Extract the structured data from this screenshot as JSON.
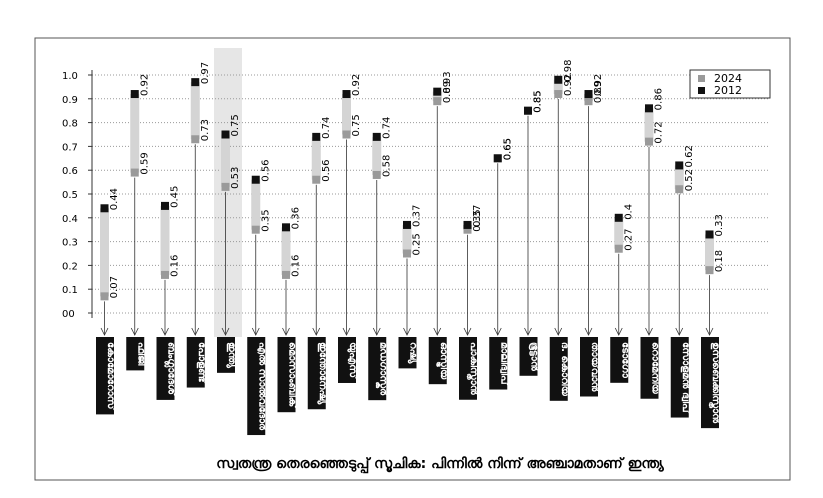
{
  "chart_data": {
    "type": "range",
    "title": "സ്വതന്ത്ര തെരഞ്ഞെടുപ്പ് സൂചിക: പിന്നിൽ നിന്ന് അഞ്ചാമതാണ് ഇന്ത്യ",
    "categories": [
      "കോമോറോസ്",
      "ഫിജി",
      "ബംഗ്ലാദേശ്",
      "പോളണ്ട്",
      "ഇന്ത്യ",
      "എൽ സാൽവദോർ",
      "മൊസാംബിക്",
      "ഇന്തോനേഷ്യ",
      "യുഎസ്",
      "മഡഗാസ്കർ",
      "റഷ്യ",
      "ഓസ്ട്രിയ",
      "പാകിസ്താൻ",
      "മാലിദ്വീപ്",
      "ഭൂട്ടാൻ",
      "ദ. കൊറിയ",
      "തായ്‌വാൻ",
      "ടോഗോ",
      "റൊമേനിയ",
      "സോളമൻ ദ്വീപ്",
      "ഉസ്ബെക്കിസ്താൻ"
    ],
    "series": [
      {
        "name": "2024",
        "color": "#9a9a9a",
        "values": [
          0.07,
          0.59,
          0.16,
          0.73,
          0.53,
          0.35,
          0.16,
          0.56,
          0.75,
          0.58,
          0.25,
          0.89,
          0.35,
          0.65,
          0.85,
          0.92,
          0.89,
          0.27,
          0.72,
          0.52,
          0.18
        ]
      },
      {
        "name": "2012",
        "color": "#111111",
        "values": [
          0.44,
          0.92,
          0.45,
          0.97,
          0.75,
          0.56,
          0.36,
          0.74,
          0.92,
          0.74,
          0.37,
          0.93,
          0.37,
          0.65,
          0.85,
          0.98,
          0.92,
          0.4,
          0.86,
          0.62,
          0.33
        ]
      }
    ],
    "ylim": [
      0,
      1
    ],
    "yticks": [
      {
        "value": 0,
        "label": "00"
      },
      0.1,
      0.2,
      0.3,
      0.4,
      0.5,
      0.6,
      0.7,
      0.8,
      0.9,
      {
        "value": 1,
        "label": "1.0"
      }
    ],
    "grid": true,
    "legend": "top-right"
  }
}
